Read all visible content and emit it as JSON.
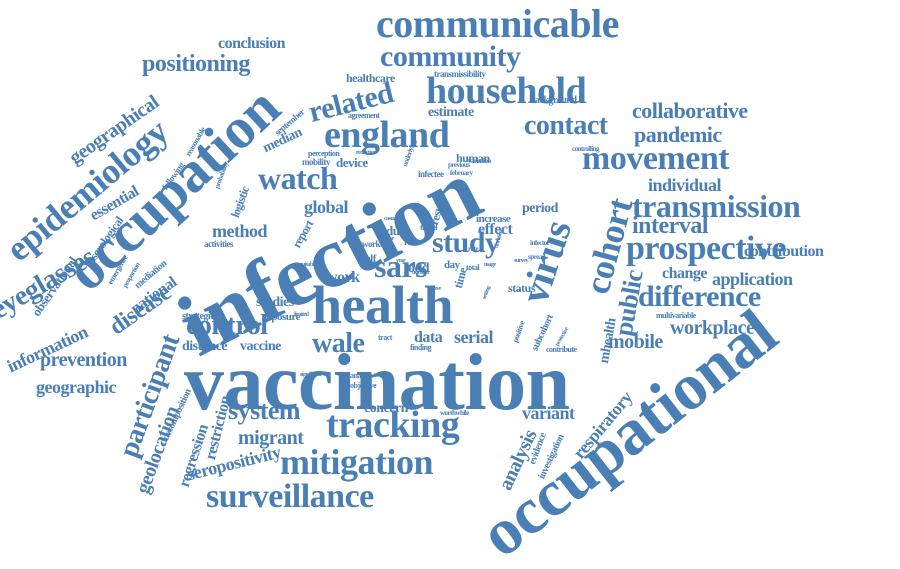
{
  "word_cloud": {
    "color": "#4a7fb5",
    "words": [
      {
        "text": "vaccination"
      },
      {
        "text": "infection"
      },
      {
        "text": "occupational"
      },
      {
        "text": "occupation"
      },
      {
        "text": "health"
      },
      {
        "text": "epidemiology"
      },
      {
        "text": "communicable"
      },
      {
        "text": "england"
      },
      {
        "text": "household"
      },
      {
        "text": "virus"
      },
      {
        "text": "cohort"
      },
      {
        "text": "tracking"
      },
      {
        "text": "mitigation"
      },
      {
        "text": "surveillance"
      },
      {
        "text": "movement"
      },
      {
        "text": "prospective"
      },
      {
        "text": "transmission"
      },
      {
        "text": "difference"
      },
      {
        "text": "watch"
      },
      {
        "text": "community"
      },
      {
        "text": "eyeglasses"
      },
      {
        "text": "participant"
      },
      {
        "text": "control"
      },
      {
        "text": "related"
      },
      {
        "text": "contact"
      },
      {
        "text": "study"
      },
      {
        "text": "sars"
      },
      {
        "text": "system"
      },
      {
        "text": "positioning"
      },
      {
        "text": "collaborative"
      },
      {
        "text": "pandemic"
      },
      {
        "text": "interval"
      },
      {
        "text": "public"
      },
      {
        "text": "wale"
      },
      {
        "text": "disease"
      },
      {
        "text": "workplace"
      },
      {
        "text": "geographical"
      },
      {
        "text": "individual"
      },
      {
        "text": "mobile"
      },
      {
        "text": "prevention"
      },
      {
        "text": "information"
      },
      {
        "text": "geographic"
      },
      {
        "text": "geolocation"
      },
      {
        "text": "migrant"
      },
      {
        "text": "variant"
      },
      {
        "text": "analysis"
      },
      {
        "text": "respiratory"
      },
      {
        "text": "seropositivity"
      },
      {
        "text": "regression"
      },
      {
        "text": "restriction"
      },
      {
        "text": "conclusion"
      },
      {
        "text": "application"
      },
      {
        "text": "contribution"
      },
      {
        "text": "change"
      },
      {
        "text": "method"
      },
      {
        "text": "global"
      },
      {
        "text": "essential"
      },
      {
        "text": "serological"
      },
      {
        "text": "observational"
      },
      {
        "text": "national"
      },
      {
        "text": "distance"
      },
      {
        "text": "vaccine"
      },
      {
        "text": "studies"
      },
      {
        "text": "serial"
      },
      {
        "text": "data"
      },
      {
        "text": "work"
      },
      {
        "text": "effect"
      },
      {
        "text": "increase"
      },
      {
        "text": "period"
      },
      {
        "text": "concern"
      },
      {
        "text": "estimate"
      },
      {
        "text": "healthcare"
      },
      {
        "text": "median"
      },
      {
        "text": "device"
      },
      {
        "text": "human"
      },
      {
        "text": "adult"
      },
      {
        "text": "odd"
      },
      {
        "text": "mhealth"
      },
      {
        "text": "mediation"
      },
      {
        "text": "decomposition"
      },
      {
        "text": "logistic"
      },
      {
        "text": "exposure"
      },
      {
        "text": "strategies"
      },
      {
        "text": "activities"
      },
      {
        "text": "background"
      },
      {
        "text": "transmissibility"
      },
      {
        "text": "agreement"
      },
      {
        "text": "september"
      },
      {
        "text": "reasonable"
      },
      {
        "text": "following"
      },
      {
        "text": "perception"
      },
      {
        "text": "mobility"
      },
      {
        "text": "underlying"
      },
      {
        "text": "infectee"
      },
      {
        "text": "february"
      },
      {
        "text": "controlling"
      },
      {
        "text": "previous"
      },
      {
        "text": "variation"
      },
      {
        "text": "result"
      },
      {
        "text": "report"
      },
      {
        "text": "time"
      },
      {
        "text": "status"
      },
      {
        "text": "subcohort"
      },
      {
        "text": "positive"
      },
      {
        "text": "protective"
      },
      {
        "text": "multivariable"
      },
      {
        "text": "contribute"
      },
      {
        "text": "finding"
      },
      {
        "text": "worthwhile"
      },
      {
        "text": "investigation"
      },
      {
        "text": "evidence"
      },
      {
        "text": "objective"
      },
      {
        "text": "analyse"
      },
      {
        "text": "significant"
      },
      {
        "text": "worker"
      },
      {
        "text": "self"
      },
      {
        "text": "risk"
      },
      {
        "text": "travel"
      },
      {
        "text": "close"
      },
      {
        "text": "casual"
      },
      {
        "text": "day"
      },
      {
        "text": "total"
      },
      {
        "text": "spread"
      },
      {
        "text": "survey"
      },
      {
        "text": "infector"
      },
      {
        "text": "usage"
      },
      {
        "text": "emergence"
      },
      {
        "text": "proportion"
      },
      {
        "text": "probability"
      },
      {
        "text": "reduction"
      },
      {
        "text": "tract"
      },
      {
        "text": "limited"
      },
      {
        "text": "suitable"
      },
      {
        "text": "setting"
      },
      {
        "text": "year"
      },
      {
        "text": "wave"
      },
      {
        "text": "duration"
      },
      {
        "text": "number"
      },
      {
        "text": "rate"
      }
    ]
  }
}
